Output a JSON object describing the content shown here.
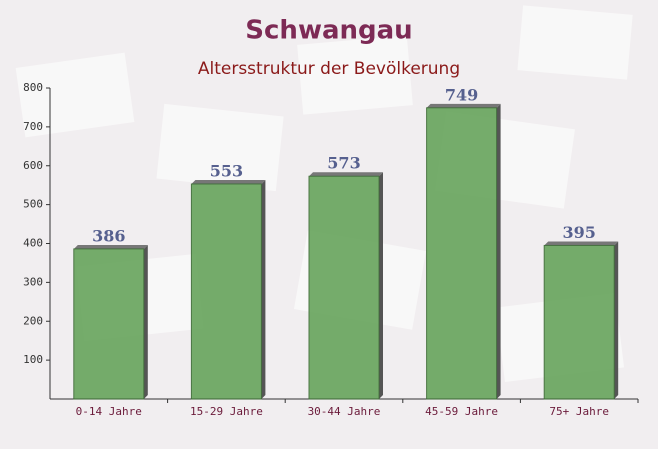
{
  "chart_data": {
    "type": "bar",
    "title": "Schwangau",
    "subtitle": "Altersstruktur der Bevölkerung",
    "categories": [
      "0-14 Jahre",
      "15-29 Jahre",
      "30-44 Jahre",
      "45-59 Jahre",
      "75+ Jahre"
    ],
    "values": [
      386,
      553,
      573,
      749,
      395
    ],
    "color": "#6aa55f",
    "ylim": [
      0,
      800
    ],
    "yticks": [
      100,
      200,
      300,
      400,
      500,
      600,
      700,
      800
    ],
    "grid": false
  }
}
